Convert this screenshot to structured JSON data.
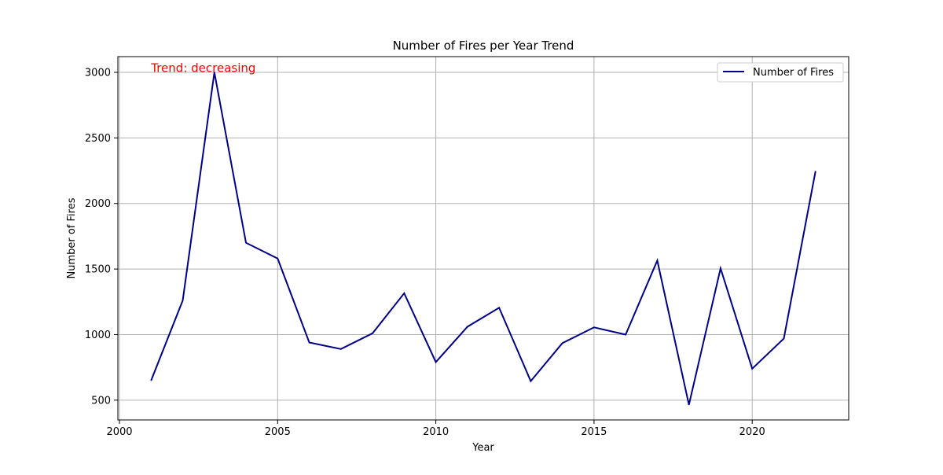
{
  "chart_data": {
    "type": "line",
    "title": "Number of Fires per Year Trend",
    "xlabel": "Year",
    "ylabel": "Number of Fires",
    "xlim": [
      1999.95,
      2023.05
    ],
    "ylim": [
      349,
      3120
    ],
    "x_ticks": [
      2000,
      2005,
      2010,
      2015,
      2020
    ],
    "y_ticks": [
      500,
      1000,
      1500,
      2000,
      2500,
      3000
    ],
    "grid": true,
    "legend_position": "upper right",
    "annotation": {
      "text": "Trend: decreasing",
      "color": "#ff0000"
    },
    "series": [
      {
        "name": "Number of Fires",
        "color": "#00008b",
        "x": [
          2001,
          2002,
          2003,
          2004,
          2005,
          2006,
          2007,
          2008,
          2009,
          2010,
          2011,
          2012,
          2013,
          2014,
          2015,
          2016,
          2017,
          2018,
          2019,
          2020,
          2021,
          2022
        ],
        "y": [
          650,
          1260,
          3000,
          1700,
          1580,
          940,
          890,
          1010,
          1315,
          790,
          1060,
          1205,
          645,
          935,
          1055,
          1000,
          1565,
          465,
          1505,
          740,
          970,
          2245
        ]
      }
    ]
  }
}
